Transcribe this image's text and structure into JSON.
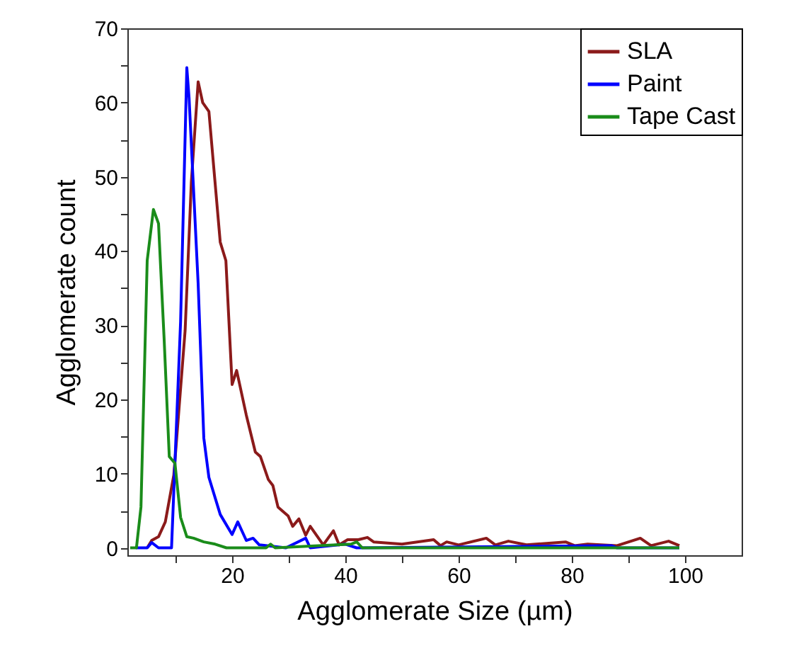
{
  "chart_data": {
    "type": "line",
    "xlabel": "Agglomerate Size (µm)",
    "ylabel": "Agglomerate count",
    "xlim": [
      1.5,
      110
    ],
    "ylim": [
      -1,
      70
    ],
    "xticks": [
      {
        "value": 10,
        "label": null
      },
      20,
      {
        "value": 30,
        "label": null
      },
      40,
      {
        "value": 50,
        "label": null
      },
      60,
      {
        "value": 70,
        "label": null
      },
      80,
      {
        "value": 90,
        "label": null
      },
      100
    ],
    "yticks": [
      0,
      {
        "value": 5,
        "label": null
      },
      10,
      {
        "value": 15,
        "label": null
      },
      20,
      {
        "value": 25,
        "label": null
      },
      30,
      {
        "value": 35,
        "label": null
      },
      40,
      {
        "value": 45,
        "label": null
      },
      50,
      {
        "value": 55,
        "label": null
      },
      60,
      {
        "value": 65,
        "label": null
      },
      70
    ],
    "grid": false,
    "legend": "top right",
    "marker": "none",
    "line_style": "solid",
    "series": [
      {
        "name": "SLA",
        "color": "#8b1a1a",
        "x": [
          5,
          5.8,
          7,
          8.2,
          9.7,
          11.7,
          12.8,
          14,
          14.8,
          15.9,
          17.9,
          18.9,
          20,
          20.8,
          22.5,
          24.1,
          25,
          26.4,
          27.2,
          28.1,
          29.9,
          30.7,
          31.8,
          33,
          33.8,
          36.1,
          37.9,
          38.9,
          40.4,
          42.3,
          43.9,
          45,
          50,
          55.6,
          56.8,
          57.9,
          60,
          64.9,
          66.5,
          68.8,
          72,
          78.9,
          80.5,
          82.8,
          88,
          92.1,
          94,
          97.1,
          99
        ],
        "values": [
          0,
          1,
          1.5,
          3.5,
          9.8,
          29.3,
          49.3,
          62.8,
          60,
          58.8,
          41.2,
          38.7,
          22,
          23.9,
          17.9,
          12.9,
          12.3,
          9.2,
          8.4,
          5.5,
          4.3,
          2.9,
          3.9,
          1.7,
          2.9,
          0.4,
          2.3,
          0.4,
          1.1,
          1.1,
          1.4,
          0.8,
          0.5,
          1.1,
          0.3,
          0.8,
          0.4,
          1.3,
          0.4,
          0.9,
          0.4,
          0.8,
          0.3,
          0.5,
          0.3,
          1.3,
          0.3,
          0.9,
          0.3
        ]
      },
      {
        "name": "Paint",
        "color": "#0000ff",
        "x": [
          3,
          5,
          5.8,
          7,
          8.9,
          9.3,
          10.9,
          12,
          12.4,
          14,
          15,
          15.9,
          17.9,
          20,
          21,
          22.5,
          23.7,
          24.8,
          29.5,
          33,
          33.8,
          40,
          42,
          87,
          88,
          99
        ],
        "values": [
          0,
          0,
          0.7,
          0,
          0,
          0,
          30.5,
          64.7,
          60.6,
          35.6,
          14.8,
          9.5,
          4.5,
          1.8,
          3.5,
          1,
          1.3,
          0.4,
          0,
          1.3,
          0,
          0.5,
          0,
          0.3,
          0,
          0
        ]
      },
      {
        "name": "Tape Cast",
        "color": "#1a8c1a",
        "x": [
          2,
          3.1,
          3.9,
          5,
          6.1,
          7,
          8,
          8.9,
          9.9,
          10.9,
          12,
          13.2,
          15,
          17,
          19,
          26,
          26.8,
          27.6,
          41,
          42,
          43,
          99
        ],
        "values": [
          0,
          0,
          5.5,
          38.7,
          45.6,
          43.7,
          28,
          12.3,
          11.4,
          4.1,
          1.5,
          1.3,
          0.8,
          0.5,
          0,
          0,
          0.5,
          0,
          0.5,
          0.8,
          0,
          0
        ]
      }
    ]
  }
}
